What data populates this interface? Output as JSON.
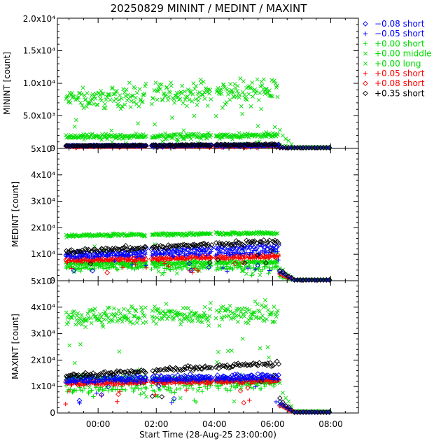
{
  "chart_data": {
    "type": "scatter",
    "title": "20250829 MININT / MEDINT / MAXINT",
    "xlabel": "Start Time (28-Aug-25 23:00:00)",
    "x_ticks": [
      {
        "t": 1,
        "label": "00:00"
      },
      {
        "t": 3,
        "label": "02:00"
      },
      {
        "t": 5,
        "label": "04:00"
      },
      {
        "t": 7,
        "label": "06:00"
      },
      {
        "t": 9,
        "label": "08:00"
      }
    ],
    "xlim": [
      -0.4,
      9.95
    ],
    "panels": [
      {
        "id": "minint",
        "ylabel": "MININT [count]",
        "ylim": [
          0,
          20000
        ],
        "ticks": [
          {
            "v": 0,
            "label": "0"
          },
          {
            "v": 5000,
            "label": "5.0x10³"
          },
          {
            "v": 10000,
            "label": "1.0x10⁴"
          },
          {
            "v": 15000,
            "label": "1.5x10⁴"
          },
          {
            "v": 20000,
            "label": "2.0x10⁴"
          }
        ]
      },
      {
        "id": "medint",
        "ylabel": "MEDINT [count]",
        "ylim": [
          0,
          50000
        ],
        "ticks": [
          {
            "v": 0,
            "label": "0"
          },
          {
            "v": 10000,
            "label": "1x10⁴"
          },
          {
            "v": 20000,
            "label": "2x10⁴"
          },
          {
            "v": 30000,
            "label": "3x10⁴"
          },
          {
            "v": 40000,
            "label": "4x10⁴"
          },
          {
            "v": 50000,
            "label": "5x10⁴"
          }
        ]
      },
      {
        "id": "maxint",
        "ylabel": "MAXINT [count]",
        "ylim": [
          0,
          50000
        ],
        "ticks": [
          {
            "v": 0,
            "label": "0"
          },
          {
            "v": 10000,
            "label": "1x10⁴"
          },
          {
            "v": 20000,
            "label": "2x10⁴"
          },
          {
            "v": 30000,
            "label": "3x10⁴"
          },
          {
            "v": 40000,
            "label": "4x10⁴"
          },
          {
            "v": 50000,
            "label": "5x10⁴"
          }
        ]
      }
    ],
    "segments": [
      {
        "t0": -0.1,
        "t1": 2.65
      },
      {
        "t0": 2.85,
        "t1": 4.9
      },
      {
        "t0": 5.05,
        "t1": 7.2
      }
    ],
    "decay": {
      "t0": 7.25,
      "t1": 8.95
    },
    "series": [
      {
        "name": "−0.08 short",
        "marker": "diamond",
        "color": "#0000ff",
        "minint": {
          "start": 400,
          "end": 500,
          "spread": 0.25
        },
        "medint": {
          "start": 10000,
          "end": 13000,
          "spread": 0.12
        },
        "maxint": {
          "start": 13000,
          "end": 14000,
          "spread": 0.1
        }
      },
      {
        "name": "−0.05 short",
        "marker": "plus",
        "color": "#0000ff",
        "minint": {
          "start": 400,
          "end": 500,
          "spread": 0.25
        },
        "medint": {
          "start": 9000,
          "end": 11000,
          "spread": 0.12
        },
        "maxint": {
          "start": 12000,
          "end": 13000,
          "spread": 0.1
        }
      },
      {
        "name": "+0.00 short",
        "marker": "plus",
        "color": "#00dd00",
        "minint": {
          "start": 350,
          "end": 450,
          "spread": 0.25
        },
        "medint": {
          "start": 5000,
          "end": 5000,
          "spread": 0.3
        },
        "maxint": {
          "start": 9000,
          "end": 11000,
          "spread": 0.35
        }
      },
      {
        "name": "+0.00 middle",
        "marker": "x",
        "color": "#00dd00",
        "minint": {
          "start": 1800,
          "end": 2000,
          "spread": 0.3
        },
        "medint": {
          "start": 6500,
          "end": 7000,
          "spread": 0.15
        },
        "maxint": {
          "start": 13000,
          "end": 12000,
          "spread": 0.12
        }
      },
      {
        "name": "+0.00 long",
        "marker": "x",
        "color": "#00dd00",
        "minint": {
          "start": 7500,
          "end": 9000,
          "spread": 0.3
        },
        "medint": {
          "start": 17000,
          "end": 18000,
          "spread": 0.05
        },
        "maxint": {
          "start": 36000,
          "end": 38000,
          "spread": 0.14
        }
      },
      {
        "name": "+0.05 short",
        "marker": "plus",
        "color": "#ff0000",
        "minint": {
          "start": 300,
          "end": 400,
          "spread": 0.25
        },
        "medint": {
          "start": 7500,
          "end": 9000,
          "spread": 0.12
        },
        "maxint": {
          "start": 11000,
          "end": 12000,
          "spread": 0.1
        }
      },
      {
        "name": "+0.08 short",
        "marker": "diamond",
        "color": "#ff0000",
        "minint": {
          "start": 300,
          "end": 400,
          "spread": 0.25
        },
        "medint": {
          "start": 8000,
          "end": 9500,
          "spread": 0.12
        },
        "maxint": {
          "start": 11500,
          "end": 12500,
          "spread": 0.1
        }
      },
      {
        "name": "+0.35 short",
        "marker": "diamond",
        "color": "#000000",
        "minint": {
          "start": 400,
          "end": 600,
          "spread": 0.25
        },
        "medint": {
          "start": 11000,
          "end": 15000,
          "spread": 0.1
        },
        "maxint": {
          "start": 14000,
          "end": 19000,
          "spread": 0.08
        }
      }
    ]
  }
}
